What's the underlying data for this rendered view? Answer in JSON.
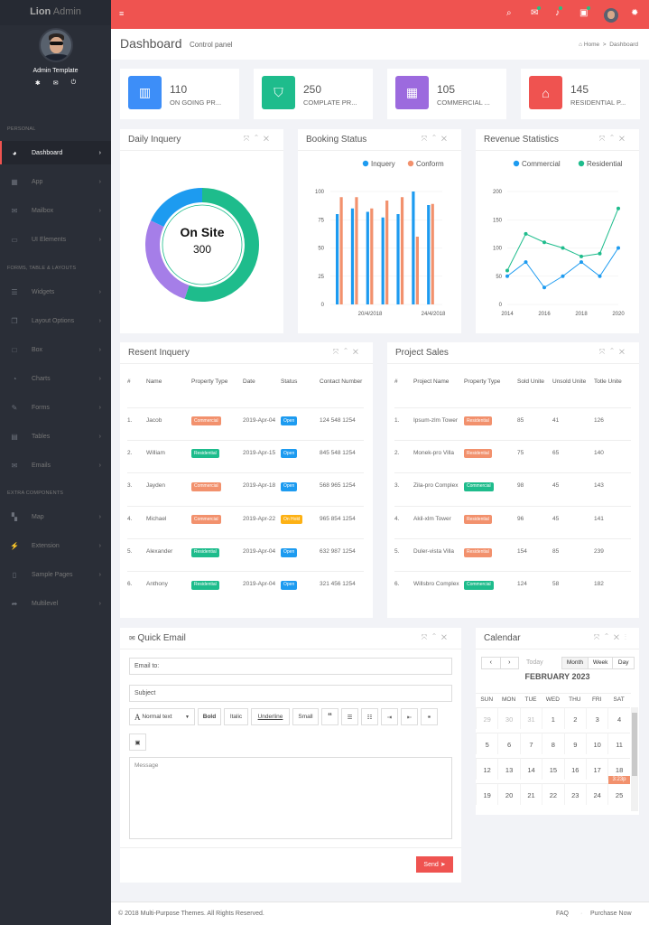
{
  "brand": {
    "prefix": "Lion",
    "suffix": "Admin"
  },
  "sidebar": {
    "user": "Admin Template",
    "sections": [
      {
        "label": "PERSONAL"
      },
      {
        "label": "FORMS, TABLE & LAYOUTS"
      },
      {
        "label": "EXTRA COMPONENTS"
      }
    ],
    "items": [
      {
        "label": "Dashboard",
        "icon": "dashboard-icon",
        "glyph": "◕"
      },
      {
        "label": "App",
        "icon": "grid-icon",
        "glyph": "▦"
      },
      {
        "label": "Mailbox",
        "icon": "mail-icon",
        "glyph": "✉"
      },
      {
        "label": "UI Elements",
        "icon": "laptop-icon",
        "glyph": "▭"
      },
      {
        "label": "Widgets",
        "icon": "list-icon",
        "glyph": "☰"
      },
      {
        "label": "Layout Options",
        "icon": "copy-icon",
        "glyph": "❐"
      },
      {
        "label": "Box",
        "icon": "square-icon",
        "glyph": "□"
      },
      {
        "label": "Charts",
        "icon": "pie-chart-icon",
        "glyph": "◔"
      },
      {
        "label": "Forms",
        "icon": "edit-icon",
        "glyph": "✎"
      },
      {
        "label": "Tables",
        "icon": "table-icon",
        "glyph": "▤"
      },
      {
        "label": "Emails",
        "icon": "envelope-icon",
        "glyph": "✉"
      },
      {
        "label": "Map",
        "icon": "map-icon",
        "glyph": "▚"
      },
      {
        "label": "Extension",
        "icon": "plug-icon",
        "glyph": "⚡"
      },
      {
        "label": "Sample Pages",
        "icon": "file-icon",
        "glyph": "▯"
      },
      {
        "label": "Multilevel",
        "icon": "share-icon",
        "glyph": "➦"
      }
    ]
  },
  "header": {
    "title": "Dashboard",
    "subtitle": "Control panel",
    "crumb_home": "Home",
    "crumb_current": "Dashboard"
  },
  "stats": [
    {
      "value": "110",
      "label": "ON GOING PR...",
      "color": "#3d8ef8"
    },
    {
      "value": "250",
      "label": "COMPLATE PR...",
      "color": "#1ebc8c"
    },
    {
      "value": "105",
      "label": "COMMERCIAL ...",
      "color": "#9c6ade"
    },
    {
      "value": "145",
      "label": "RESIDENTIAL P...",
      "color": "#ef5350"
    }
  ],
  "daily": {
    "title": "Daily Inquery",
    "center_title": "On Site",
    "center_value": "300"
  },
  "booking": {
    "title": "Booking Status"
  },
  "revenue": {
    "title": "Revenue Statistics"
  },
  "chart_data": [
    {
      "type": "pie",
      "title": "Daily Inquery",
      "annotation": "On Site 300",
      "series": [
        {
          "color": "#1ebc8c",
          "value": 55
        },
        {
          "color": "#a57ee8",
          "value": 27
        },
        {
          "color": "#1d9bf0",
          "value": 18
        }
      ]
    },
    {
      "type": "bar",
      "title": "Booking Status",
      "legend": [
        "Inquery",
        "Conform"
      ],
      "legend_position": "top",
      "ylim": [
        0,
        100
      ],
      "yticks": [
        0,
        25,
        50,
        75,
        100
      ],
      "xtick_labels": [
        "20/4/2018",
        "24/4/2018"
      ],
      "series": [
        {
          "name": "Inquery",
          "color": "#1d9bf0",
          "values": [
            80,
            85,
            82,
            77,
            80,
            100,
            88
          ]
        },
        {
          "name": "Conform",
          "color": "#f2916d",
          "values": [
            95,
            95,
            85,
            92,
            95,
            60,
            89
          ]
        }
      ]
    },
    {
      "type": "line",
      "title": "Revenue Statistics",
      "legend": [
        "Commercial",
        "Residential"
      ],
      "legend_position": "top",
      "ylim": [
        0,
        200
      ],
      "yticks": [
        0,
        50,
        100,
        150,
        200
      ],
      "xlim": [
        2014,
        2020
      ],
      "xticks": [
        2014,
        2016,
        2018,
        2020
      ],
      "series": [
        {
          "name": "Commercial",
          "color": "#1d9bf0",
          "x": [
            2014,
            2015,
            2016,
            2017,
            2018,
            2019,
            2020
          ],
          "y": [
            50,
            75,
            30,
            50,
            75,
            50,
            100
          ]
        },
        {
          "name": "Residential",
          "color": "#1ebc8c",
          "x": [
            2014,
            2015,
            2016,
            2017,
            2018,
            2019,
            2020
          ],
          "y": [
            60,
            125,
            110,
            100,
            85,
            90,
            170
          ]
        }
      ]
    }
  ],
  "recent": {
    "title": "Resent Inquery",
    "headers": [
      "#",
      "Name",
      "Property Type",
      "Date",
      "Status",
      "Contact Number"
    ],
    "rows": [
      {
        "n": "1.",
        "name": "Jacob",
        "type": "Commercial",
        "date": "2019-Apr-04",
        "status": "Open",
        "phone": "124 548 1254"
      },
      {
        "n": "2.",
        "name": "William",
        "type": "Residential",
        "date": "2019-Apr-15",
        "status": "Open",
        "phone": "845 548 1254"
      },
      {
        "n": "3.",
        "name": "Jayden",
        "type": "Commercial",
        "date": "2019-Apr-18",
        "status": "Open",
        "phone": "568 965 1254"
      },
      {
        "n": "4.",
        "name": "Michael",
        "type": "Commercial",
        "date": "2019-Apr-22",
        "status": "On Hold",
        "phone": "965 854 1254"
      },
      {
        "n": "5.",
        "name": "Alexander",
        "type": "Residential",
        "date": "2019-Apr-04",
        "status": "Open",
        "phone": "632 987 1254"
      },
      {
        "n": "6.",
        "name": "Anthony",
        "type": "Residential",
        "date": "2019-Apr-04",
        "status": "Open",
        "phone": "321 456 1254"
      }
    ]
  },
  "sales": {
    "title": "Project Sales",
    "headers": [
      "#",
      "Project Name",
      "Property Type",
      "Sold Unite",
      "Unsold Unite",
      "Totle Unite"
    ],
    "rows": [
      {
        "n": "1.",
        "name": "Ipsum-zlm Tower",
        "type": "Residential",
        "sold": "85",
        "unsold": "41",
        "total": "126"
      },
      {
        "n": "2.",
        "name": "Monek-pro Villa",
        "type": "Residential",
        "sold": "75",
        "unsold": "65",
        "total": "140"
      },
      {
        "n": "3.",
        "name": "Zila-pro Complex",
        "type": "Commercial",
        "sold": "98",
        "unsold": "45",
        "total": "143"
      },
      {
        "n": "4.",
        "name": "Akil-xlm Tower",
        "type": "Residential",
        "sold": "96",
        "unsold": "45",
        "total": "141"
      },
      {
        "n": "5.",
        "name": "Duler-vista Villa",
        "type": "Residential",
        "sold": "154",
        "unsold": "85",
        "total": "239"
      },
      {
        "n": "6.",
        "name": "Willsbro Complex",
        "type": "Commercial",
        "sold": "124",
        "unsold": "58",
        "total": "182"
      }
    ]
  },
  "email": {
    "title": "Quick Email",
    "to_placeholder": "Email to:",
    "subject_placeholder": "Subject",
    "message_placeholder": "Message",
    "format": "Normal text",
    "bold": "Bold",
    "italic": "Italic",
    "underline": "Underline",
    "small": "Small",
    "send": "Send"
  },
  "calendar": {
    "title": "Calendar",
    "today": "Today",
    "month": "Month",
    "week": "Week",
    "day": "Day",
    "heading": "FEBRUARY 2023",
    "weekdays": [
      "SUN",
      "MON",
      "TUE",
      "WED",
      "THU",
      "FRI",
      "SAT"
    ],
    "days": [
      {
        "d": "29",
        "o": true
      },
      {
        "d": "30",
        "o": true
      },
      {
        "d": "31",
        "o": true
      },
      {
        "d": "1"
      },
      {
        "d": "2"
      },
      {
        "d": "3"
      },
      {
        "d": "4"
      },
      {
        "d": "5"
      },
      {
        "d": "6"
      },
      {
        "d": "7"
      },
      {
        "d": "8"
      },
      {
        "d": "9"
      },
      {
        "d": "10"
      },
      {
        "d": "11"
      },
      {
        "d": "12"
      },
      {
        "d": "13"
      },
      {
        "d": "14"
      },
      {
        "d": "15"
      },
      {
        "d": "16"
      },
      {
        "d": "17"
      },
      {
        "d": "18"
      },
      {
        "d": "19"
      },
      {
        "d": "20"
      },
      {
        "d": "21"
      },
      {
        "d": "22"
      },
      {
        "d": "23"
      },
      {
        "d": "24"
      },
      {
        "d": "25"
      }
    ],
    "event": "3:23p"
  },
  "footer": {
    "copyright": "© 2018 Multi-Purpose Themes. All Rights Reserved.",
    "faq": "FAQ",
    "purchase": "Purchase Now"
  }
}
